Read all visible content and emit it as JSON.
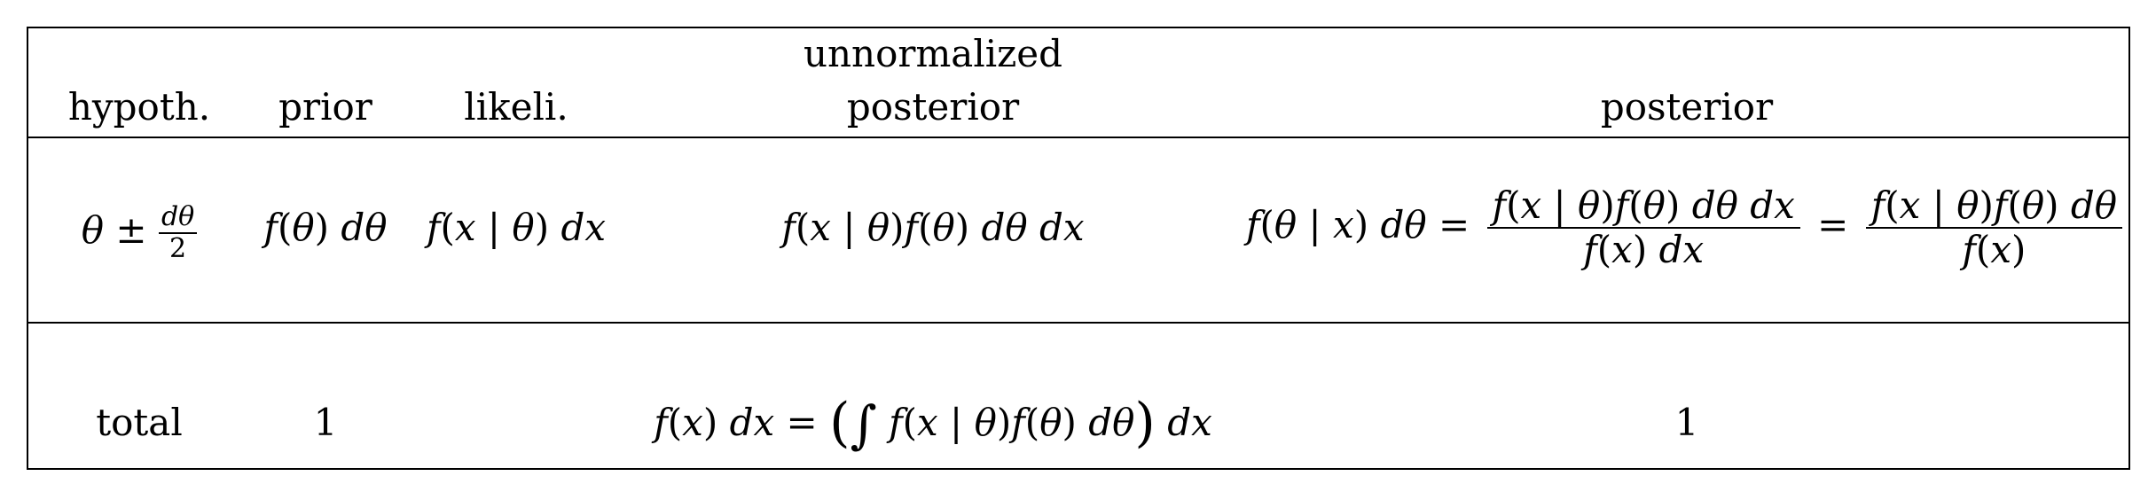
{
  "headers": {
    "hypoth": "hypoth.",
    "prior": "prior",
    "likeli": "likeli.",
    "unnorm_line1": "unnormalized",
    "unnorm_line2": "posterior",
    "posterior": "posterior"
  },
  "row_hypothesis": {
    "hypothesis": "θ ± dθ/2",
    "prior": "f(θ) dθ",
    "likelihood": "f(x | θ) dx",
    "unnormalized": "f(x | θ)f(θ) dθ dx",
    "posterior": "f(θ | x) dθ = f(x | θ)f(θ) dθ dx / f(x) dx = f(x | θ)f(θ) dθ / f(x)"
  },
  "row_total": {
    "label": "total",
    "prior": "1",
    "unnormalized": "f(x) dx = (∫ f(x | θ)f(θ) dθ) dx",
    "posterior": "1"
  }
}
